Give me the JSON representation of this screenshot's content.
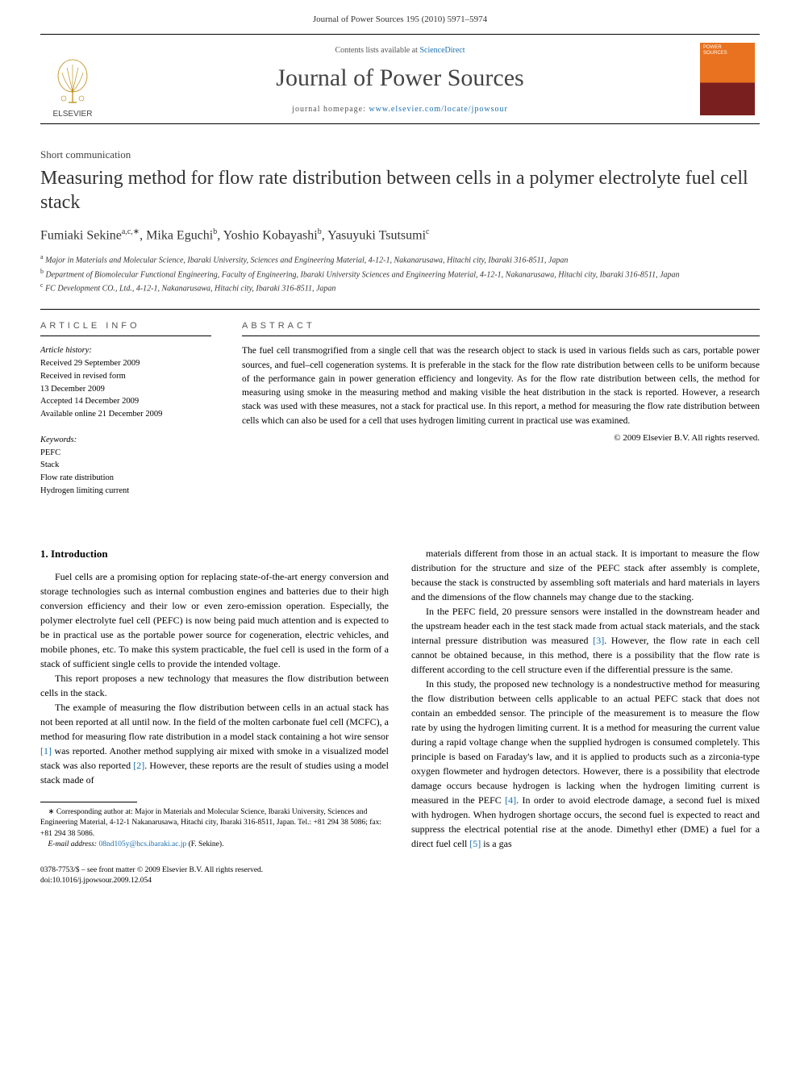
{
  "header": {
    "running": "Journal of Power Sources 195 (2010) 5971–5974"
  },
  "masthead": {
    "contents_prefix": "Contents lists available at ",
    "contents_link": "ScienceDirect",
    "journal_name": "Journal of Power Sources",
    "homepage_prefix": "journal homepage: ",
    "homepage_link": "www.elsevier.com/locate/jpowsour",
    "publisher": "ELSEVIER",
    "cover_line1": "POWER",
    "cover_line2": "SOURCES"
  },
  "article": {
    "type": "Short communication",
    "title": "Measuring method for flow rate distribution between cells in a polymer electrolyte fuel cell stack",
    "authors_html": "Fumiaki Sekine<sup>a,c,∗</sup>, Mika Eguchi<sup>b</sup>, Yoshio Kobayashi<sup>b</sup>, Yasuyuki Tsutsumi<sup>c</sup>",
    "affiliations": [
      "Major in Materials and Molecular Science, Ibaraki University, Sciences and Engineering Material, 4-12-1, Nakanarusawa, Hitachi city, Ibaraki 316-8511, Japan",
      "Department of Biomolecular Functional Engineering, Faculty of Engineering, Ibaraki University Sciences and Engineering Material, 4-12-1, Nakanarusawa, Hitachi city, Ibaraki 316-8511, Japan",
      "FC Development CO., Ltd., 4-12-1, Nakanarusawa, Hitachi city, Ibaraki 316-8511, Japan"
    ],
    "aff_markers": [
      "a",
      "b",
      "c"
    ]
  },
  "info": {
    "head": "ARTICLE INFO",
    "history_label": "Article history:",
    "history": [
      "Received 29 September 2009",
      "Received in revised form",
      "13 December 2009",
      "Accepted 14 December 2009",
      "Available online 21 December 2009"
    ],
    "keywords_label": "Keywords:",
    "keywords": [
      "PEFC",
      "Stack",
      "Flow rate distribution",
      "Hydrogen limiting current"
    ]
  },
  "abstract": {
    "head": "ABSTRACT",
    "text": "The fuel cell transmogrified from a single cell that was the research object to stack is used in various fields such as cars, portable power sources, and fuel–cell cogeneration systems. It is preferable in the stack for the flow rate distribution between cells to be uniform because of the performance gain in power generation efficiency and longevity. As for the flow rate distribution between cells, the method for measuring using smoke in the measuring method and making visible the heat distribution in the stack is reported. However, a research stack was used with these measures, not a stack for practical use. In this report, a method for measuring the flow rate distribution between cells which can also be used for a cell that uses hydrogen limiting current in practical use was examined.",
    "copyright": "© 2009 Elsevier B.V. All rights reserved."
  },
  "body": {
    "intro_head": "1. Introduction",
    "p1": "Fuel cells are a promising option for replacing state-of-the-art energy conversion and storage technologies such as internal combustion engines and batteries due to their high conversion efficiency and their low or even zero-emission operation. Especially, the polymer electrolyte fuel cell (PEFC) is now being paid much attention and is expected to be in practical use as the portable power source for cogeneration, electric vehicles, and mobile phones, etc. To make this system practicable, the fuel cell is used in the form of a stack of sufficient single cells to provide the intended voltage.",
    "p2": "This report proposes a new technology that measures the flow distribution between cells in the stack.",
    "p3a": "The example of measuring the flow distribution between cells in an actual stack has not been reported at all until now. In the field of the molten carbonate fuel cell (MCFC), a method for measuring flow rate distribution in a model stack containing a hot wire sensor ",
    "p3_ref1": "[1]",
    "p3b": " was reported. Another method supplying air mixed with smoke in a visualized model stack was also reported ",
    "p3_ref2": "[2]",
    "p3c": ". However, these reports are the result of studies using a model stack made of",
    "p4": "materials different from those in an actual stack. It is important to measure the flow distribution for the structure and size of the PEFC stack after assembly is complete, because the stack is constructed by assembling soft materials and hard materials in layers and the dimensions of the flow channels may change due to the stacking.",
    "p5a": "In the PEFC field, 20 pressure sensors were installed in the downstream header and the upstream header each in the test stack made from actual stack materials, and the stack internal pressure distribution was measured ",
    "p5_ref3": "[3]",
    "p5b": ". However, the flow rate in each cell cannot be obtained because, in this method, there is a possibility that the flow rate is different according to the cell structure even if the differential pressure is the same.",
    "p6a": "In this study, the proposed new technology is a nondestructive method for measuring the flow distribution between cells applicable to an actual PEFC stack that does not contain an embedded sensor. The principle of the measurement is to measure the flow rate by using the hydrogen limiting current. It is a method for measuring the current value during a rapid voltage change when the supplied hydrogen is consumed completely. This principle is based on Faraday's law, and it is applied to products such as a zirconia-type oxygen flowmeter and hydrogen detectors. However, there is a possibility that electrode damage occurs because hydrogen is lacking when the hydrogen limiting current is measured in the PEFC ",
    "p6_ref4": "[4]",
    "p6b": ". In order to avoid electrode damage, a second fuel is mixed with hydrogen. When hydrogen shortage occurs, the second fuel is expected to react and suppress the electrical potential rise at the anode. Dimethyl ether (DME) a fuel for a direct fuel cell ",
    "p6_ref5": "[5]",
    "p6c": " is a gas"
  },
  "footnotes": {
    "corr": "∗ Corresponding author at: Major in Materials and Molecular Science, Ibaraki University, Sciences and Engineering Material, 4-12-1 Nakanarusawa, Hitachi city, Ibaraki 316-8511, Japan. Tel.: +81 294 38 5086; fax: +81 294 38 5086.",
    "email_label": "E-mail address: ",
    "email": "08nd105y@hcs.ibaraki.ac.jp",
    "email_suffix": " (F. Sekine)."
  },
  "footer": {
    "line1": "0378-7753/$ – see front matter © 2009 Elsevier B.V. All rights reserved.",
    "line2": "doi:10.1016/j.jpowsour.2009.12.054"
  },
  "colors": {
    "link": "#1a6fb0",
    "text": "#000000",
    "heading": "#333333"
  }
}
